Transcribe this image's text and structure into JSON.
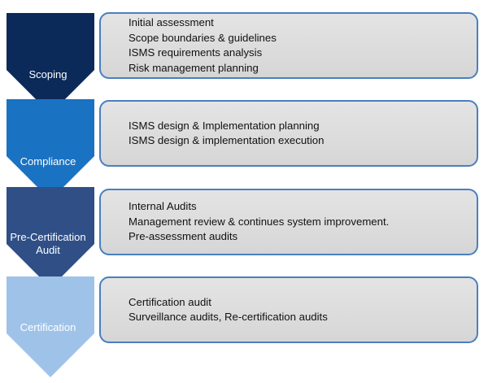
{
  "colors": {
    "stage1": "#0b2a5a",
    "stage2": "#1a72c2",
    "stage3": "#2f4f86",
    "stage4": "#9fc3e8",
    "box_border": "#4a7fc1",
    "box_fill": "#dcdcdc"
  },
  "stages": [
    {
      "label": "Scoping",
      "items": [
        "Initial assessment",
        "Scope boundaries & guidelines",
        "ISMS requirements analysis",
        "Risk management planning"
      ]
    },
    {
      "label": "Compliance",
      "items": [
        "ISMS design & Implementation planning",
        "ISMS design & implementation execution"
      ]
    },
    {
      "label": "Pre-Certification Audit",
      "label_lines": [
        "Pre-Certification",
        "Audit"
      ],
      "items": [
        "Internal Audits",
        "Management review & continues system improvement.",
        "Pre-assessment audits"
      ]
    },
    {
      "label": "Certification",
      "items": [
        "Certification audit",
        "Surveillance audits, Re-certification audits"
      ]
    }
  ]
}
